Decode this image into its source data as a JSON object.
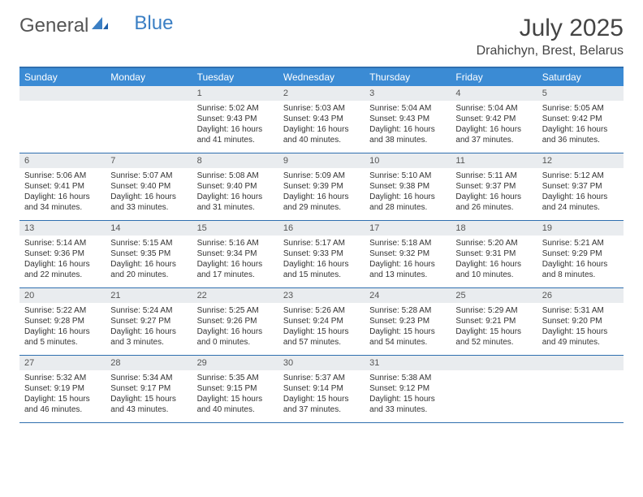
{
  "logo": {
    "part1": "General",
    "part2": "Blue"
  },
  "title": "July 2025",
  "location": "Drahichyn, Brest, Belarus",
  "colors": {
    "header_bg": "#3b8bd4",
    "border": "#2f6faf",
    "daynum_bg": "#e9ecef",
    "logo_blue": "#3b7fc4"
  },
  "weekdays": [
    "Sunday",
    "Monday",
    "Tuesday",
    "Wednesday",
    "Thursday",
    "Friday",
    "Saturday"
  ],
  "weeks": [
    [
      {
        "n": "",
        "lines": []
      },
      {
        "n": "",
        "lines": []
      },
      {
        "n": "1",
        "lines": [
          "Sunrise: 5:02 AM",
          "Sunset: 9:43 PM",
          "Daylight: 16 hours and 41 minutes."
        ]
      },
      {
        "n": "2",
        "lines": [
          "Sunrise: 5:03 AM",
          "Sunset: 9:43 PM",
          "Daylight: 16 hours and 40 minutes."
        ]
      },
      {
        "n": "3",
        "lines": [
          "Sunrise: 5:04 AM",
          "Sunset: 9:43 PM",
          "Daylight: 16 hours and 38 minutes."
        ]
      },
      {
        "n": "4",
        "lines": [
          "Sunrise: 5:04 AM",
          "Sunset: 9:42 PM",
          "Daylight: 16 hours and 37 minutes."
        ]
      },
      {
        "n": "5",
        "lines": [
          "Sunrise: 5:05 AM",
          "Sunset: 9:42 PM",
          "Daylight: 16 hours and 36 minutes."
        ]
      }
    ],
    [
      {
        "n": "6",
        "lines": [
          "Sunrise: 5:06 AM",
          "Sunset: 9:41 PM",
          "Daylight: 16 hours and 34 minutes."
        ]
      },
      {
        "n": "7",
        "lines": [
          "Sunrise: 5:07 AM",
          "Sunset: 9:40 PM",
          "Daylight: 16 hours and 33 minutes."
        ]
      },
      {
        "n": "8",
        "lines": [
          "Sunrise: 5:08 AM",
          "Sunset: 9:40 PM",
          "Daylight: 16 hours and 31 minutes."
        ]
      },
      {
        "n": "9",
        "lines": [
          "Sunrise: 5:09 AM",
          "Sunset: 9:39 PM",
          "Daylight: 16 hours and 29 minutes."
        ]
      },
      {
        "n": "10",
        "lines": [
          "Sunrise: 5:10 AM",
          "Sunset: 9:38 PM",
          "Daylight: 16 hours and 28 minutes."
        ]
      },
      {
        "n": "11",
        "lines": [
          "Sunrise: 5:11 AM",
          "Sunset: 9:37 PM",
          "Daylight: 16 hours and 26 minutes."
        ]
      },
      {
        "n": "12",
        "lines": [
          "Sunrise: 5:12 AM",
          "Sunset: 9:37 PM",
          "Daylight: 16 hours and 24 minutes."
        ]
      }
    ],
    [
      {
        "n": "13",
        "lines": [
          "Sunrise: 5:14 AM",
          "Sunset: 9:36 PM",
          "Daylight: 16 hours and 22 minutes."
        ]
      },
      {
        "n": "14",
        "lines": [
          "Sunrise: 5:15 AM",
          "Sunset: 9:35 PM",
          "Daylight: 16 hours and 20 minutes."
        ]
      },
      {
        "n": "15",
        "lines": [
          "Sunrise: 5:16 AM",
          "Sunset: 9:34 PM",
          "Daylight: 16 hours and 17 minutes."
        ]
      },
      {
        "n": "16",
        "lines": [
          "Sunrise: 5:17 AM",
          "Sunset: 9:33 PM",
          "Daylight: 16 hours and 15 minutes."
        ]
      },
      {
        "n": "17",
        "lines": [
          "Sunrise: 5:18 AM",
          "Sunset: 9:32 PM",
          "Daylight: 16 hours and 13 minutes."
        ]
      },
      {
        "n": "18",
        "lines": [
          "Sunrise: 5:20 AM",
          "Sunset: 9:31 PM",
          "Daylight: 16 hours and 10 minutes."
        ]
      },
      {
        "n": "19",
        "lines": [
          "Sunrise: 5:21 AM",
          "Sunset: 9:29 PM",
          "Daylight: 16 hours and 8 minutes."
        ]
      }
    ],
    [
      {
        "n": "20",
        "lines": [
          "Sunrise: 5:22 AM",
          "Sunset: 9:28 PM",
          "Daylight: 16 hours and 5 minutes."
        ]
      },
      {
        "n": "21",
        "lines": [
          "Sunrise: 5:24 AM",
          "Sunset: 9:27 PM",
          "Daylight: 16 hours and 3 minutes."
        ]
      },
      {
        "n": "22",
        "lines": [
          "Sunrise: 5:25 AM",
          "Sunset: 9:26 PM",
          "Daylight: 16 hours and 0 minutes."
        ]
      },
      {
        "n": "23",
        "lines": [
          "Sunrise: 5:26 AM",
          "Sunset: 9:24 PM",
          "Daylight: 15 hours and 57 minutes."
        ]
      },
      {
        "n": "24",
        "lines": [
          "Sunrise: 5:28 AM",
          "Sunset: 9:23 PM",
          "Daylight: 15 hours and 54 minutes."
        ]
      },
      {
        "n": "25",
        "lines": [
          "Sunrise: 5:29 AM",
          "Sunset: 9:21 PM",
          "Daylight: 15 hours and 52 minutes."
        ]
      },
      {
        "n": "26",
        "lines": [
          "Sunrise: 5:31 AM",
          "Sunset: 9:20 PM",
          "Daylight: 15 hours and 49 minutes."
        ]
      }
    ],
    [
      {
        "n": "27",
        "lines": [
          "Sunrise: 5:32 AM",
          "Sunset: 9:19 PM",
          "Daylight: 15 hours and 46 minutes."
        ]
      },
      {
        "n": "28",
        "lines": [
          "Sunrise: 5:34 AM",
          "Sunset: 9:17 PM",
          "Daylight: 15 hours and 43 minutes."
        ]
      },
      {
        "n": "29",
        "lines": [
          "Sunrise: 5:35 AM",
          "Sunset: 9:15 PM",
          "Daylight: 15 hours and 40 minutes."
        ]
      },
      {
        "n": "30",
        "lines": [
          "Sunrise: 5:37 AM",
          "Sunset: 9:14 PM",
          "Daylight: 15 hours and 37 minutes."
        ]
      },
      {
        "n": "31",
        "lines": [
          "Sunrise: 5:38 AM",
          "Sunset: 9:12 PM",
          "Daylight: 15 hours and 33 minutes."
        ]
      },
      {
        "n": "",
        "lines": []
      },
      {
        "n": "",
        "lines": []
      }
    ]
  ]
}
